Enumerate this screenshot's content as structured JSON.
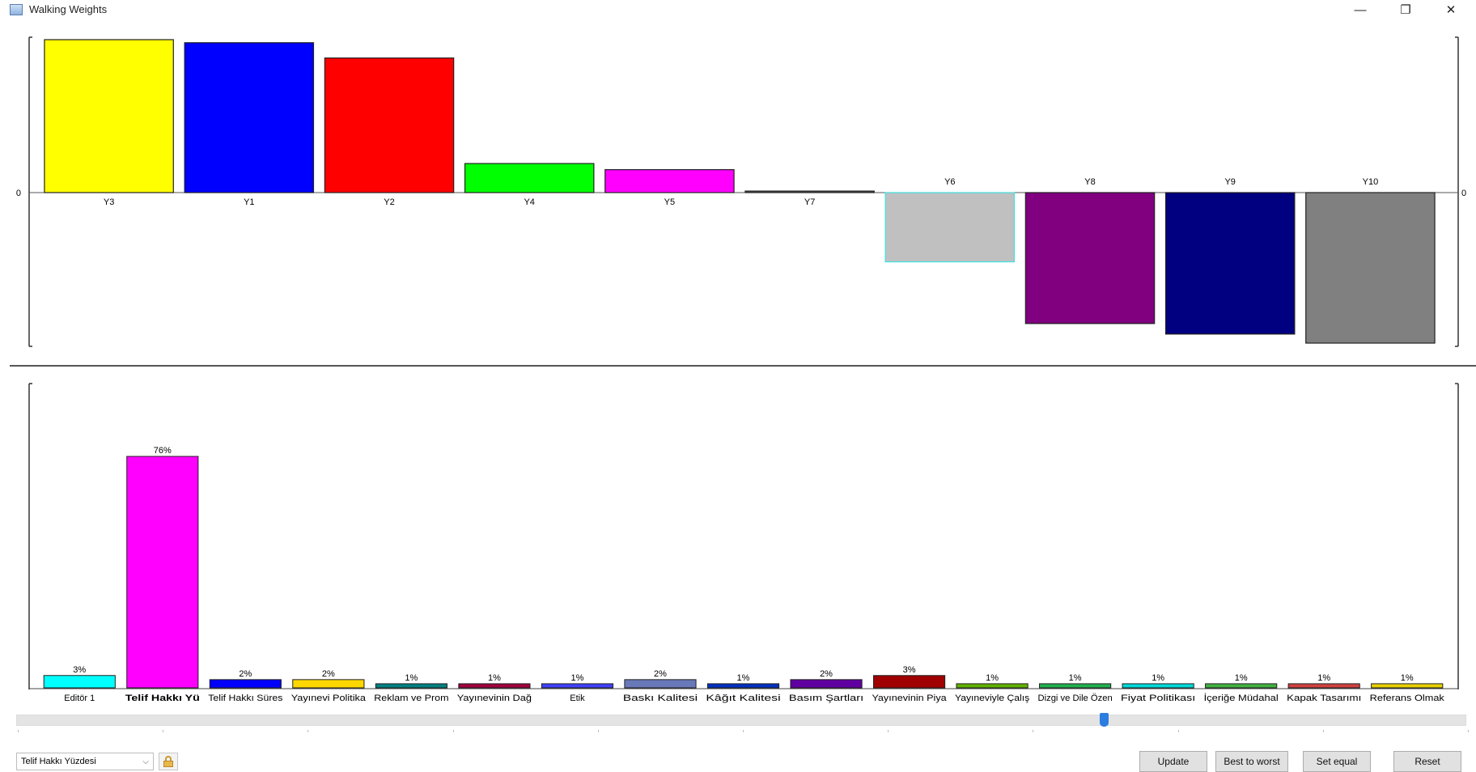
{
  "window": {
    "title": "Walking Weights",
    "icon": "chart-window-icon",
    "controls": {
      "minimize": "—",
      "restore": "❐",
      "close": "✕"
    }
  },
  "chart_data": [
    {
      "type": "bar",
      "name": "alternative-scores",
      "zero_label": "0",
      "categories": [
        "Y3",
        "Y1",
        "Y2",
        "Y4",
        "Y5",
        "Y7",
        "Y6",
        "Y8",
        "Y9",
        "Y10"
      ],
      "values": [
        1.0,
        0.98,
        0.88,
        0.19,
        0.15,
        0.01,
        -0.46,
        -0.87,
        -0.94,
        -1.0
      ],
      "colors": [
        "#ffff00",
        "#0000ff",
        "#ff0000",
        "#00ff00",
        "#ff00ff",
        "#555555",
        "#c0c0c0",
        "#800080",
        "#000080",
        "#808080"
      ],
      "ylim": [
        -1.0,
        1.0
      ],
      "grid": false
    },
    {
      "type": "bar",
      "name": "criteria-weights",
      "categories": [
        "Editör 1",
        "Telif Hakkı Yü",
        "Telif Hakkı Süres",
        "Yayınevi Politika",
        "Reklam ve Prom",
        "Yayınevinin Dağ",
        "Etik",
        "Baskı Kalitesi",
        "Kâğıt Kalitesi",
        "Basım Şartları",
        "Yayınevinin Piya",
        "Yayıneviyle Çalış",
        "Dizgi ve Dile Özen",
        "Fiyat Politikası",
        "İçeriğe Müdahal",
        "Kapak Tasarımı",
        "Referans Olmak"
      ],
      "values": [
        3,
        76,
        2,
        2,
        1,
        1,
        1,
        2,
        1,
        2,
        3,
        1,
        1,
        1,
        1,
        1,
        1
      ],
      "value_labels": [
        "3%",
        "76%",
        "2%",
        "2%",
        "1%",
        "1%",
        "1%",
        "2%",
        "1%",
        "2%",
        "3%",
        "1%",
        "1%",
        "1%",
        "1%",
        "1%",
        "1%"
      ],
      "colors": [
        "#00ffff",
        "#ff00ff",
        "#0000ff",
        "#ffd700",
        "#008080",
        "#a0003c",
        "#4040ff",
        "#6878b8",
        "#0030c0",
        "#6000a0",
        "#a00000",
        "#60b000",
        "#20b050",
        "#00d8d8",
        "#40b040",
        "#d04040",
        "#e8d000"
      ],
      "highlighted_index": 1,
      "ylim": [
        0,
        100
      ],
      "grid": false
    }
  ],
  "slider": {
    "position": 0.75
  },
  "controls": {
    "criterion_select": "Telif Hakkı Yüzdesi",
    "lock_icon": "lock-icon",
    "update_label": "Update",
    "best_to_worst_label": "Best to worst",
    "set_equal_label": "Set equal",
    "reset_label": "Reset"
  }
}
